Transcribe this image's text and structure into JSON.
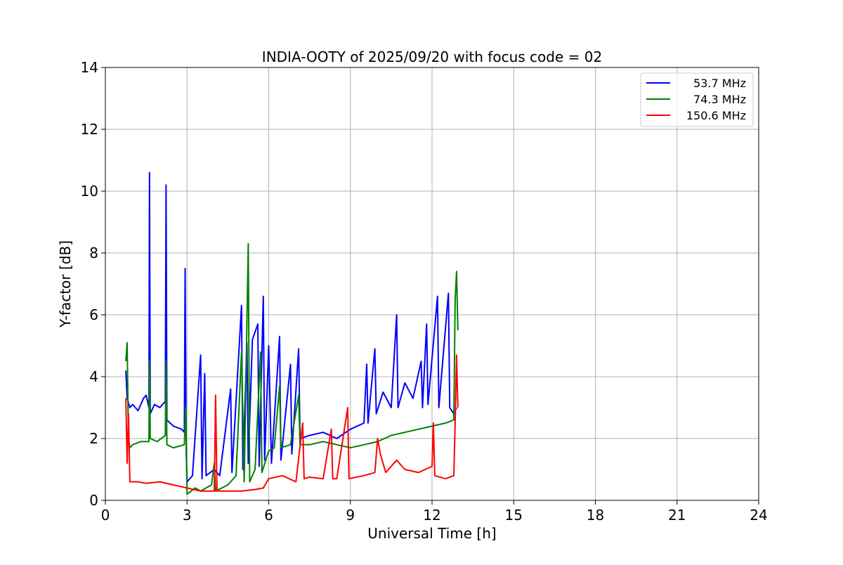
{
  "chart_data": {
    "type": "line",
    "title": "INDIA-OOTY of 2025/09/20 with focus code = 02",
    "xlabel": "Universal Time [h]",
    "ylabel": "Y-factor [dB]",
    "xlim": [
      0,
      24
    ],
    "ylim": [
      0,
      14
    ],
    "xticks": [
      0,
      3,
      6,
      9,
      12,
      15,
      18,
      21,
      24
    ],
    "yticks": [
      0,
      2,
      4,
      6,
      8,
      10,
      12,
      14
    ],
    "grid": true,
    "legend_position": "top-right",
    "series": [
      {
        "name": "53.7 MHz",
        "color": "#0000ff",
        "points": [
          [
            0.75,
            4.2
          ],
          [
            0.8,
            3.3
          ],
          [
            0.9,
            3.0
          ],
          [
            1.0,
            3.1
          ],
          [
            1.2,
            2.9
          ],
          [
            1.4,
            3.3
          ],
          [
            1.5,
            3.4
          ],
          [
            1.6,
            3.0
          ],
          [
            1.62,
            10.6
          ],
          [
            1.65,
            2.8
          ],
          [
            1.8,
            3.1
          ],
          [
            2.0,
            3.0
          ],
          [
            2.2,
            3.2
          ],
          [
            2.23,
            10.2
          ],
          [
            2.26,
            2.6
          ],
          [
            2.5,
            2.4
          ],
          [
            2.8,
            2.3
          ],
          [
            2.9,
            2.2
          ],
          [
            2.93,
            7.5
          ],
          [
            2.97,
            1.5
          ],
          [
            3.0,
            0.6
          ],
          [
            3.2,
            0.8
          ],
          [
            3.5,
            4.7
          ],
          [
            3.55,
            0.7
          ],
          [
            3.65,
            4.1
          ],
          [
            3.7,
            0.8
          ],
          [
            4.0,
            1.0
          ],
          [
            4.2,
            0.8
          ],
          [
            4.6,
            3.6
          ],
          [
            4.65,
            0.9
          ],
          [
            5.0,
            6.3
          ],
          [
            5.05,
            1.0
          ],
          [
            5.2,
            5.1
          ],
          [
            5.25,
            1.2
          ],
          [
            5.4,
            5.2
          ],
          [
            5.6,
            5.7
          ],
          [
            5.65,
            1.1
          ],
          [
            5.8,
            6.6
          ],
          [
            5.85,
            1.3
          ],
          [
            6.0,
            5.0
          ],
          [
            6.1,
            1.2
          ],
          [
            6.4,
            5.3
          ],
          [
            6.45,
            1.3
          ],
          [
            6.8,
            4.4
          ],
          [
            6.85,
            1.5
          ],
          [
            7.1,
            4.9
          ],
          [
            7.15,
            2.0
          ],
          [
            7.5,
            2.1
          ],
          [
            8.0,
            2.2
          ],
          [
            8.5,
            2.0
          ],
          [
            9.0,
            2.3
          ],
          [
            9.5,
            2.5
          ],
          [
            9.6,
            4.4
          ],
          [
            9.65,
            2.5
          ],
          [
            9.9,
            4.9
          ],
          [
            9.95,
            2.8
          ],
          [
            10.2,
            3.5
          ],
          [
            10.5,
            3.0
          ],
          [
            10.7,
            6.0
          ],
          [
            10.75,
            3.0
          ],
          [
            11.0,
            3.8
          ],
          [
            11.3,
            3.3
          ],
          [
            11.6,
            4.5
          ],
          [
            11.65,
            3.0
          ],
          [
            11.8,
            5.7
          ],
          [
            11.85,
            3.1
          ],
          [
            12.2,
            6.6
          ],
          [
            12.25,
            3.0
          ],
          [
            12.6,
            6.7
          ],
          [
            12.65,
            3.0
          ],
          [
            12.8,
            2.8
          ],
          [
            12.9,
            3.0
          ]
        ]
      },
      {
        "name": "74.3 MHz",
        "color": "#008000",
        "points": [
          [
            0.75,
            4.5
          ],
          [
            0.8,
            5.1
          ],
          [
            0.85,
            2.0
          ],
          [
            0.9,
            1.7
          ],
          [
            1.0,
            1.8
          ],
          [
            1.3,
            1.9
          ],
          [
            1.6,
            1.9
          ],
          [
            1.62,
            4.5
          ],
          [
            1.65,
            2.0
          ],
          [
            1.9,
            1.9
          ],
          [
            2.2,
            2.1
          ],
          [
            2.23,
            4.5
          ],
          [
            2.26,
            1.8
          ],
          [
            2.5,
            1.7
          ],
          [
            2.9,
            1.8
          ],
          [
            2.95,
            3.0
          ],
          [
            3.0,
            0.2
          ],
          [
            3.3,
            0.4
          ],
          [
            3.5,
            0.3
          ],
          [
            3.9,
            0.5
          ],
          [
            4.0,
            1.2
          ],
          [
            4.05,
            0.3
          ],
          [
            4.5,
            0.5
          ],
          [
            4.8,
            0.8
          ],
          [
            5.0,
            4.8
          ],
          [
            5.1,
            0.6
          ],
          [
            5.25,
            8.3
          ],
          [
            5.3,
            0.6
          ],
          [
            5.5,
            1.0
          ],
          [
            5.7,
            4.8
          ],
          [
            5.75,
            0.9
          ],
          [
            6.0,
            1.6
          ],
          [
            6.2,
            1.7
          ],
          [
            6.4,
            3.7
          ],
          [
            6.45,
            1.7
          ],
          [
            6.8,
            1.8
          ],
          [
            7.1,
            3.4
          ],
          [
            7.15,
            1.8
          ],
          [
            7.5,
            1.8
          ],
          [
            8.0,
            1.9
          ],
          [
            8.5,
            1.8
          ],
          [
            9.0,
            1.7
          ],
          [
            9.5,
            1.8
          ],
          [
            10.0,
            1.9
          ],
          [
            10.5,
            2.1
          ],
          [
            11.0,
            2.2
          ],
          [
            11.5,
            2.3
          ],
          [
            12.0,
            2.4
          ],
          [
            12.5,
            2.5
          ],
          [
            12.8,
            2.6
          ],
          [
            12.85,
            6.5
          ],
          [
            12.9,
            7.4
          ],
          [
            12.95,
            5.5
          ]
        ]
      },
      {
        "name": "150.6 MHz",
        "color": "#ff0000",
        "points": [
          [
            0.75,
            3.3
          ],
          [
            0.8,
            1.2
          ],
          [
            0.85,
            2.8
          ],
          [
            0.9,
            0.6
          ],
          [
            1.2,
            0.6
          ],
          [
            1.5,
            0.55
          ],
          [
            2.0,
            0.6
          ],
          [
            2.5,
            0.5
          ],
          [
            3.0,
            0.4
          ],
          [
            3.5,
            0.3
          ],
          [
            4.0,
            0.3
          ],
          [
            4.05,
            3.4
          ],
          [
            4.1,
            0.3
          ],
          [
            4.5,
            0.3
          ],
          [
            5.0,
            0.3
          ],
          [
            5.5,
            0.35
          ],
          [
            5.8,
            0.4
          ],
          [
            6.0,
            0.7
          ],
          [
            6.5,
            0.8
          ],
          [
            7.0,
            0.6
          ],
          [
            7.25,
            2.5
          ],
          [
            7.3,
            0.7
          ],
          [
            7.5,
            0.75
          ],
          [
            8.0,
            0.7
          ],
          [
            8.3,
            2.3
          ],
          [
            8.35,
            0.7
          ],
          [
            8.5,
            0.7
          ],
          [
            8.9,
            3.0
          ],
          [
            8.95,
            0.7
          ],
          [
            9.5,
            0.8
          ],
          [
            9.9,
            0.9
          ],
          [
            10.0,
            2.0
          ],
          [
            10.1,
            1.5
          ],
          [
            10.3,
            0.9
          ],
          [
            10.7,
            1.3
          ],
          [
            11.0,
            1.0
          ],
          [
            11.5,
            0.9
          ],
          [
            12.0,
            1.1
          ],
          [
            12.05,
            2.5
          ],
          [
            12.1,
            0.8
          ],
          [
            12.5,
            0.7
          ],
          [
            12.8,
            0.8
          ],
          [
            12.85,
            2.5
          ],
          [
            12.9,
            4.7
          ],
          [
            12.95,
            3.0
          ]
        ]
      }
    ]
  }
}
